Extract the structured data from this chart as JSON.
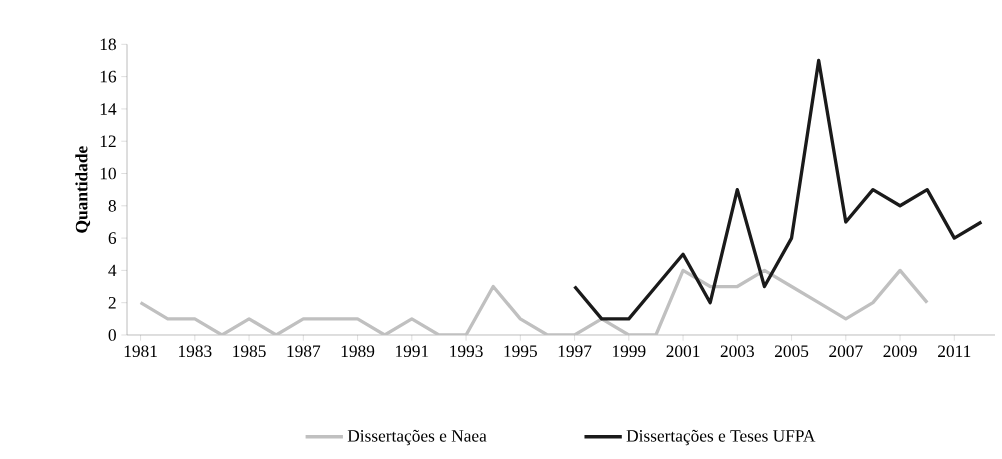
{
  "chart_data": {
    "type": "line",
    "ylabel": "Quantidade",
    "xlim": [
      1980.5,
      2012.5
    ],
    "ylim": [
      0,
      18
    ],
    "xticks": [
      1981,
      1983,
      1985,
      1987,
      1989,
      1991,
      1993,
      1995,
      1997,
      1999,
      2001,
      2003,
      2005,
      2007,
      2009,
      2011
    ],
    "yticks": [
      0,
      2,
      4,
      6,
      8,
      10,
      12,
      14,
      16,
      18
    ],
    "grid": false,
    "legend": "bottom",
    "marker": "none",
    "line_style": "solid",
    "series": [
      {
        "name": "Dissertações e Naea",
        "color": "#c0c0c0",
        "x": [
          1981,
          1982,
          1983,
          1984,
          1985,
          1986,
          1987,
          1988,
          1989,
          1990,
          1991,
          1992,
          1993,
          1994,
          1995,
          1996,
          1997,
          1998,
          1999,
          2000,
          2001,
          2002,
          2003,
          2004,
          2005,
          2006,
          2007,
          2008,
          2009,
          2010
        ],
        "values": [
          2,
          1,
          1,
          0,
          1,
          0,
          1,
          1,
          1,
          0,
          1,
          0,
          0,
          3,
          1,
          0,
          0,
          1,
          0,
          0,
          4,
          3,
          3,
          4,
          3,
          2,
          1,
          2,
          4,
          2
        ]
      },
      {
        "name": "Dissertações e Teses UFPA",
        "color": "#1a1a1a",
        "x": [
          1997,
          1998,
          1999,
          2000,
          2001,
          2002,
          2003,
          2004,
          2005,
          2006,
          2007,
          2008,
          2009,
          2010,
          2011,
          2012
        ],
        "values": [
          3,
          1,
          1,
          3,
          5,
          2,
          9,
          3,
          6,
          17,
          7,
          9,
          8,
          9,
          6,
          7
        ]
      }
    ]
  }
}
